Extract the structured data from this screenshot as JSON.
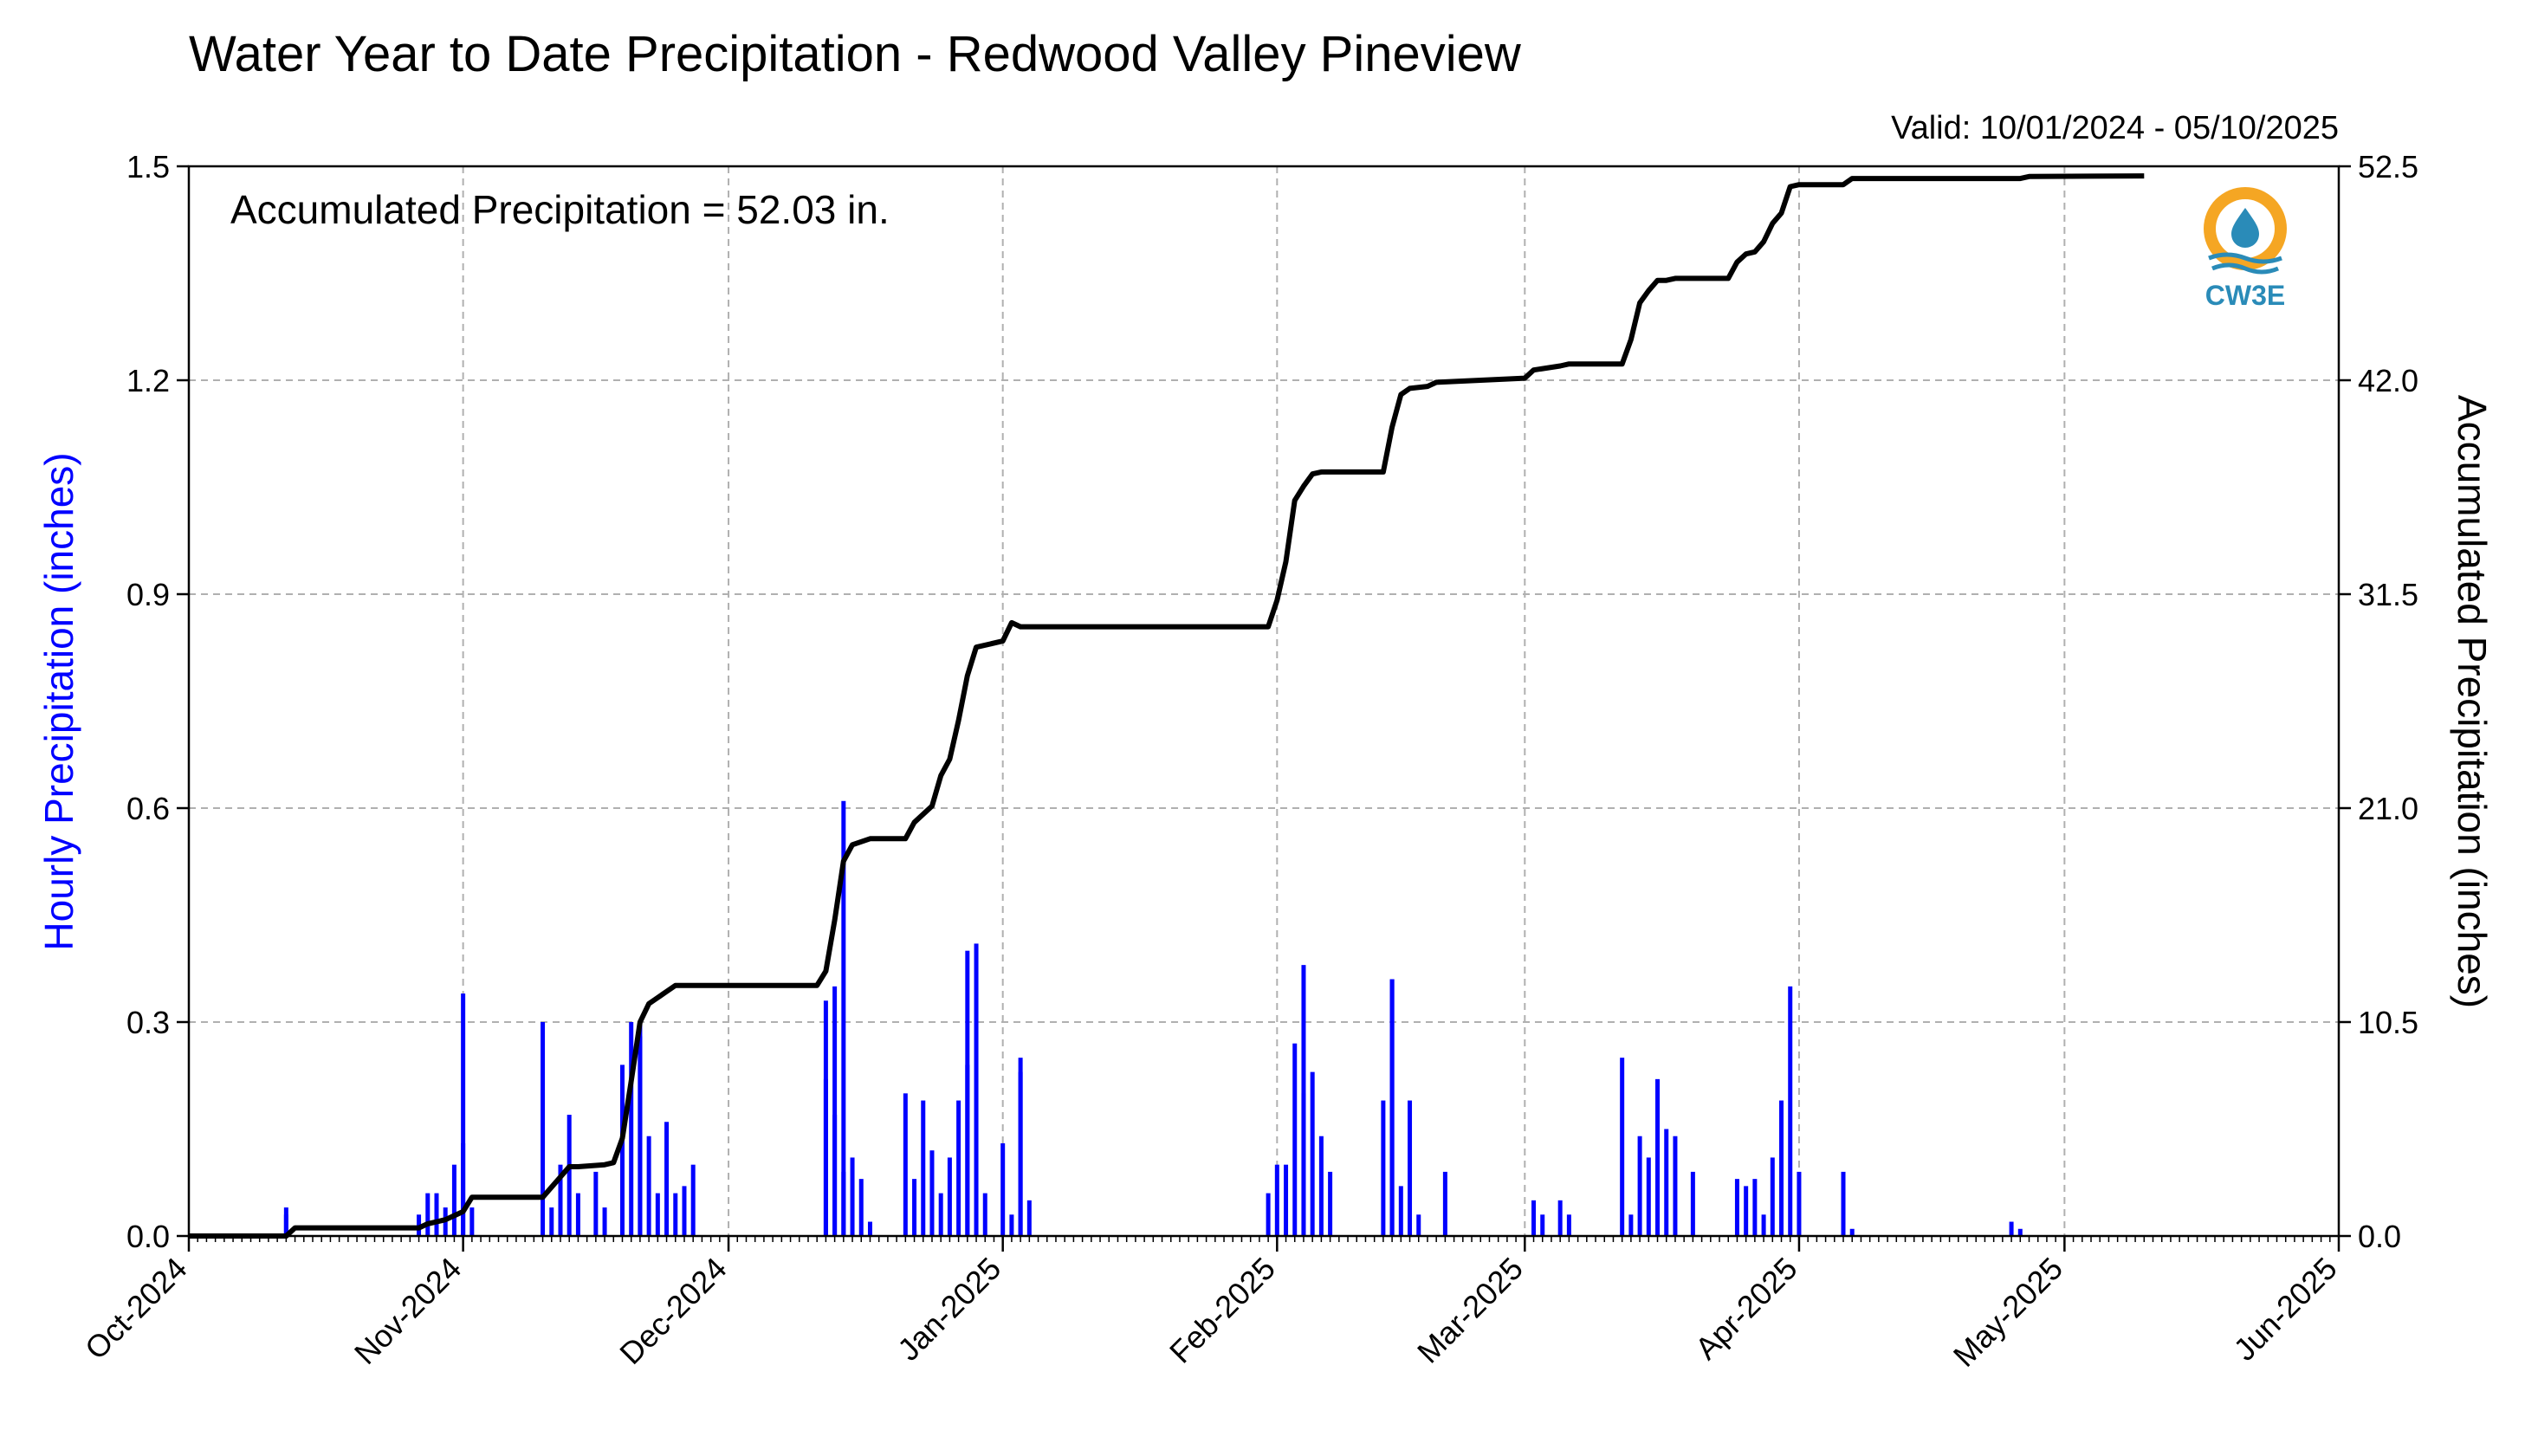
{
  "chart_data": {
    "type": "bar+line",
    "title": "Water Year to Date Precipitation - Redwood Valley Pineview",
    "subtitle": "Valid: 10/01/2024 - 05/10/2025",
    "annotation": "Accumulated Precipitation = 52.03 in.",
    "logo_text": "CW3E",
    "ylabel_left": "Hourly Precipitation (inches)",
    "ylabel_right": "Accumulated Precipitation (inches)",
    "ylim_left": [
      0,
      1.5
    ],
    "ylim_right": [
      0,
      52.5
    ],
    "yticks_left": [
      "0.0",
      "0.3",
      "0.6",
      "0.9",
      "1.2",
      "1.5"
    ],
    "yticks_right": [
      "0.0",
      "10.5",
      "21.0",
      "31.5",
      "42.0",
      "52.5"
    ],
    "x_range": [
      "2024-10-01",
      "2025-06-01"
    ],
    "xticks": [
      "Oct-2024",
      "Nov-2024",
      "Dec-2024",
      "Jan-2025",
      "Feb-2025",
      "Mar-2025",
      "Apr-2025",
      "May-2025",
      "Jun-2025"
    ],
    "grid": true,
    "colors": {
      "hourly": "#0000ff",
      "accumulated": "#000000",
      "ylabel_left": "#0000ff",
      "logo": "#2a8bb8",
      "logo_sun": "#f5a623"
    },
    "series": [
      {
        "name": "Hourly Precipitation",
        "type": "bar",
        "x": [
          "2024-10-12",
          "2024-10-12",
          "2024-10-27",
          "2024-10-28",
          "2024-10-29",
          "2024-10-30",
          "2024-10-31",
          "2024-11-01",
          "2024-11-01",
          "2024-11-02",
          "2024-11-10",
          "2024-11-11",
          "2024-11-12",
          "2024-11-13",
          "2024-11-14",
          "2024-11-16",
          "2024-11-17",
          "2024-11-19",
          "2024-11-20",
          "2024-11-21",
          "2024-11-21",
          "2024-11-22",
          "2024-11-23",
          "2024-11-24",
          "2024-11-25",
          "2024-11-26",
          "2024-11-27",
          "2024-12-12",
          "2024-12-12",
          "2024-12-13",
          "2024-12-13",
          "2024-12-14",
          "2024-12-14",
          "2024-12-15",
          "2024-12-16",
          "2024-12-17",
          "2024-12-21",
          "2024-12-22",
          "2024-12-23",
          "2024-12-24",
          "2024-12-25",
          "2024-12-26",
          "2024-12-27",
          "2024-12-28",
          "2024-12-28",
          "2024-12-29",
          "2024-12-30",
          "2025-01-01",
          "2025-01-02",
          "2025-01-03",
          "2025-01-03",
          "2025-01-04",
          "2025-01-31",
          "2025-02-01",
          "2025-02-02",
          "2025-02-03",
          "2025-02-04",
          "2025-02-04",
          "2025-02-05",
          "2025-02-06",
          "2025-02-07",
          "2025-02-13",
          "2025-02-14",
          "2025-02-14",
          "2025-02-15",
          "2025-02-16",
          "2025-02-17",
          "2025-02-20",
          "2025-03-02",
          "2025-03-03",
          "2025-03-05",
          "2025-03-06",
          "2025-03-12",
          "2025-03-13",
          "2025-03-14",
          "2025-03-15",
          "2025-03-16",
          "2025-03-17",
          "2025-03-18",
          "2025-03-20",
          "2025-03-25",
          "2025-03-26",
          "2025-03-27",
          "2025-03-28",
          "2025-03-29",
          "2025-03-30",
          "2025-03-31",
          "2025-04-01",
          "2025-04-06",
          "2025-04-07",
          "2025-04-25",
          "2025-04-26"
        ],
        "values": [
          0.04,
          0.03,
          0.03,
          0.06,
          0.06,
          0.04,
          0.1,
          0.34,
          0.13,
          0.04,
          0.3,
          0.04,
          0.1,
          0.17,
          0.06,
          0.09,
          0.04,
          0.24,
          0.3,
          0.3,
          0.28,
          0.14,
          0.06,
          0.16,
          0.06,
          0.07,
          0.1,
          0.33,
          0.22,
          0.17,
          0.35,
          0.61,
          0.09,
          0.11,
          0.08,
          0.02,
          0.2,
          0.08,
          0.19,
          0.12,
          0.06,
          0.11,
          0.19,
          0.24,
          0.4,
          0.41,
          0.06,
          0.13,
          0.03,
          0.23,
          0.25,
          0.05,
          0.06,
          0.1,
          0.1,
          0.27,
          0.2,
          0.38,
          0.23,
          0.14,
          0.09,
          0.19,
          0.36,
          0.36,
          0.07,
          0.19,
          0.03,
          0.09,
          0.05,
          0.03,
          0.05,
          0.03,
          0.25,
          0.03,
          0.14,
          0.11,
          0.22,
          0.15,
          0.14,
          0.09,
          0.08,
          0.07,
          0.08,
          0.03,
          0.11,
          0.19,
          0.35,
          0.09,
          0.09,
          0.01,
          0.02,
          0.01
        ]
      },
      {
        "name": "Accumulated Precipitation",
        "type": "line",
        "x": [
          "2024-10-01",
          "2024-10-12",
          "2024-10-13",
          "2024-10-27",
          "2024-10-28",
          "2024-10-30",
          "2024-10-31",
          "2024-11-01",
          "2024-11-02",
          "2024-11-10",
          "2024-11-11",
          "2024-11-12",
          "2024-11-13",
          "2024-11-14",
          "2024-11-17",
          "2024-11-18",
          "2024-11-19",
          "2024-11-20",
          "2024-11-21",
          "2024-11-22",
          "2024-11-23",
          "2024-11-24",
          "2024-11-25",
          "2024-11-27",
          "2024-12-11",
          "2024-12-12",
          "2024-12-13",
          "2024-12-14",
          "2024-12-15",
          "2024-12-17",
          "2024-12-21",
          "2024-12-22",
          "2024-12-24",
          "2024-12-25",
          "2024-12-26",
          "2024-12-27",
          "2024-12-28",
          "2024-12-29",
          "2025-01-01",
          "2025-01-02",
          "2025-01-03",
          "2025-01-31",
          "2025-02-01",
          "2025-02-02",
          "2025-02-03",
          "2025-02-04",
          "2025-02-05",
          "2025-02-06",
          "2025-02-13",
          "2025-02-14",
          "2025-02-15",
          "2025-02-16",
          "2025-02-18",
          "2025-02-19",
          "2025-03-01",
          "2025-03-02",
          "2025-03-05",
          "2025-03-06",
          "2025-03-12",
          "2025-03-13",
          "2025-03-14",
          "2025-03-15",
          "2025-03-16",
          "2025-03-17",
          "2025-03-18",
          "2025-03-24",
          "2025-03-25",
          "2025-03-26",
          "2025-03-27",
          "2025-03-28",
          "2025-03-29",
          "2025-03-30",
          "2025-03-31",
          "2025-04-01",
          "2025-04-06",
          "2025-04-07",
          "2025-04-26",
          "2025-04-27",
          "2025-05-10"
        ],
        "values": [
          0.0,
          0.0,
          0.4,
          0.4,
          0.6,
          0.8,
          1.0,
          1.2,
          1.9,
          1.9,
          2.4,
          2.9,
          3.4,
          3.4,
          3.5,
          3.6,
          4.8,
          7.6,
          10.5,
          11.4,
          11.7,
          12.0,
          12.3,
          12.3,
          12.3,
          13.0,
          15.5,
          18.4,
          19.2,
          19.5,
          19.5,
          20.3,
          21.1,
          22.6,
          23.4,
          25.3,
          27.5,
          28.9,
          29.2,
          30.1,
          29.9,
          29.9,
          31.2,
          33.1,
          36.1,
          36.8,
          37.4,
          37.5,
          37.5,
          39.7,
          41.3,
          41.6,
          41.7,
          41.9,
          42.1,
          42.5,
          42.7,
          42.8,
          42.8,
          44.0,
          45.8,
          46.4,
          46.9,
          46.9,
          47.0,
          47.0,
          47.8,
          48.2,
          48.3,
          48.8,
          49.7,
          50.2,
          51.5,
          51.6,
          51.6,
          51.9,
          51.9,
          52.0,
          52.03
        ]
      }
    ]
  }
}
